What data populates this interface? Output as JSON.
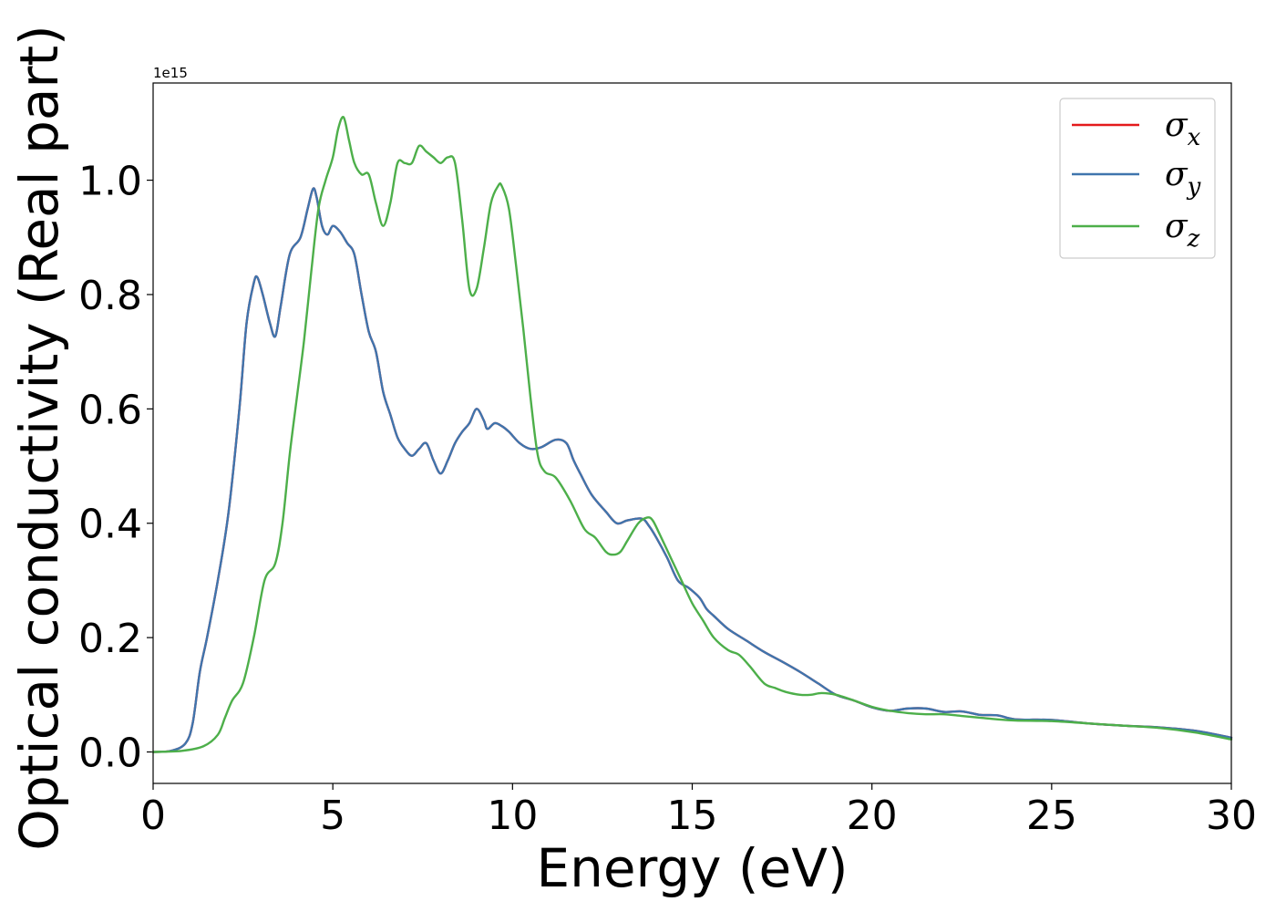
{
  "chart_data": {
    "type": "line",
    "xlabel": "Energy (eV)",
    "ylabel": "Optical conductivity (Real part)",
    "y_offset_text": "1e15",
    "xlim": [
      0,
      30
    ],
    "ylim": [
      -0.055,
      1.17
    ],
    "x_ticks": [
      0,
      5,
      10,
      15,
      20,
      25,
      30
    ],
    "y_ticks": [
      0.0,
      0.2,
      0.4,
      0.6,
      0.8,
      1.0
    ],
    "x_tick_labels": [
      "0",
      "5",
      "10",
      "15",
      "20",
      "25",
      "30"
    ],
    "y_tick_labels": [
      "0.0",
      "0.2",
      "0.4",
      "0.6",
      "0.8",
      "1.0"
    ],
    "legend_position": "top-right",
    "grid": false,
    "series": [
      {
        "name": "σx",
        "sym": "σ",
        "sub": "x",
        "color": "#e41a1c",
        "x": [
          0,
          0.5,
          0.9,
          1.1,
          1.3,
          1.5,
          1.8,
          2.1,
          2.4,
          2.6,
          2.8,
          2.9,
          3.05,
          3.25,
          3.4,
          3.55,
          3.8,
          4.1,
          4.3,
          4.45,
          4.55,
          4.7,
          4.85,
          5.0,
          5.2,
          5.4,
          5.6,
          5.8,
          6.0,
          6.2,
          6.4,
          6.6,
          6.8,
          7.0,
          7.2,
          7.4,
          7.6,
          7.8,
          8.0,
          8.2,
          8.4,
          8.6,
          8.8,
          9.0,
          9.2,
          9.3,
          9.5,
          9.7,
          9.9,
          10.2,
          10.5,
          10.8,
          11.2,
          11.5,
          11.7,
          11.9,
          12.2,
          12.6,
          12.9,
          13.2,
          13.6,
          13.8,
          14.0,
          14.3,
          14.6,
          14.9,
          15.2,
          15.4,
          15.6,
          16.0,
          16.5,
          17.0,
          17.5,
          18.0,
          18.5,
          19.0,
          19.5,
          20.0,
          20.5,
          21.0,
          21.5,
          22.0,
          22.5,
          23.0,
          23.5,
          24.0,
          25.0,
          26.0,
          27.0,
          28.0,
          29.0,
          30.0
        ],
        "y": [
          0.0,
          0.002,
          0.015,
          0.05,
          0.14,
          0.2,
          0.3,
          0.42,
          0.6,
          0.75,
          0.82,
          0.83,
          0.8,
          0.75,
          0.727,
          0.78,
          0.87,
          0.9,
          0.95,
          0.985,
          0.97,
          0.92,
          0.905,
          0.92,
          0.91,
          0.89,
          0.87,
          0.8,
          0.735,
          0.7,
          0.63,
          0.59,
          0.55,
          0.53,
          0.518,
          0.53,
          0.54,
          0.51,
          0.487,
          0.51,
          0.54,
          0.56,
          0.575,
          0.6,
          0.58,
          0.565,
          0.575,
          0.57,
          0.56,
          0.54,
          0.53,
          0.533,
          0.546,
          0.54,
          0.51,
          0.485,
          0.45,
          0.42,
          0.4,
          0.405,
          0.408,
          0.395,
          0.375,
          0.34,
          0.3,
          0.287,
          0.27,
          0.25,
          0.238,
          0.215,
          0.195,
          0.175,
          0.158,
          0.14,
          0.12,
          0.1,
          0.09,
          0.078,
          0.072,
          0.076,
          0.076,
          0.07,
          0.071,
          0.065,
          0.064,
          0.057,
          0.056,
          0.05,
          0.046,
          0.043,
          0.037,
          0.025
        ]
      },
      {
        "name": "σy",
        "sym": "σ",
        "sub": "y",
        "color": "#3f75ad",
        "x": [
          0,
          0.5,
          0.9,
          1.1,
          1.3,
          1.5,
          1.8,
          2.1,
          2.4,
          2.6,
          2.8,
          2.9,
          3.05,
          3.25,
          3.4,
          3.55,
          3.8,
          4.1,
          4.3,
          4.45,
          4.55,
          4.7,
          4.85,
          5.0,
          5.2,
          5.4,
          5.6,
          5.8,
          6.0,
          6.2,
          6.4,
          6.6,
          6.8,
          7.0,
          7.2,
          7.4,
          7.6,
          7.8,
          8.0,
          8.2,
          8.4,
          8.6,
          8.8,
          9.0,
          9.2,
          9.3,
          9.5,
          9.7,
          9.9,
          10.2,
          10.5,
          10.8,
          11.2,
          11.5,
          11.7,
          11.9,
          12.2,
          12.6,
          12.9,
          13.2,
          13.6,
          13.8,
          14.0,
          14.3,
          14.6,
          14.9,
          15.2,
          15.4,
          15.6,
          16.0,
          16.5,
          17.0,
          17.5,
          18.0,
          18.5,
          19.0,
          19.5,
          20.0,
          20.5,
          21.0,
          21.5,
          22.0,
          22.5,
          23.0,
          23.5,
          24.0,
          25.0,
          26.0,
          27.0,
          28.0,
          29.0,
          30.0
        ],
        "y": [
          0.0,
          0.002,
          0.015,
          0.05,
          0.14,
          0.2,
          0.3,
          0.42,
          0.6,
          0.75,
          0.82,
          0.83,
          0.8,
          0.75,
          0.727,
          0.78,
          0.87,
          0.9,
          0.95,
          0.985,
          0.97,
          0.92,
          0.905,
          0.92,
          0.91,
          0.89,
          0.87,
          0.8,
          0.735,
          0.7,
          0.63,
          0.59,
          0.55,
          0.53,
          0.518,
          0.53,
          0.54,
          0.51,
          0.487,
          0.51,
          0.54,
          0.56,
          0.575,
          0.6,
          0.58,
          0.565,
          0.575,
          0.57,
          0.56,
          0.54,
          0.53,
          0.533,
          0.546,
          0.54,
          0.51,
          0.485,
          0.45,
          0.42,
          0.4,
          0.405,
          0.408,
          0.395,
          0.375,
          0.34,
          0.3,
          0.287,
          0.27,
          0.25,
          0.238,
          0.215,
          0.195,
          0.175,
          0.158,
          0.14,
          0.12,
          0.1,
          0.09,
          0.078,
          0.072,
          0.076,
          0.076,
          0.07,
          0.071,
          0.065,
          0.064,
          0.057,
          0.056,
          0.05,
          0.046,
          0.043,
          0.037,
          0.025
        ]
      },
      {
        "name": "σz",
        "sym": "σ",
        "sub": "z",
        "color": "#4daf4a",
        "x": [
          0,
          0.8,
          1.4,
          1.8,
          2.0,
          2.2,
          2.5,
          2.8,
          3.1,
          3.4,
          3.6,
          3.8,
          4.0,
          4.2,
          4.4,
          4.6,
          4.8,
          5.0,
          5.15,
          5.3,
          5.45,
          5.6,
          5.8,
          6.0,
          6.2,
          6.4,
          6.6,
          6.8,
          7.0,
          7.2,
          7.4,
          7.6,
          7.8,
          8.0,
          8.2,
          8.4,
          8.6,
          8.8,
          9.0,
          9.2,
          9.4,
          9.6,
          9.7,
          9.9,
          10.1,
          10.3,
          10.5,
          10.7,
          10.9,
          11.2,
          11.6,
          12.0,
          12.3,
          12.6,
          12.8,
          13.0,
          13.2,
          13.5,
          13.75,
          13.9,
          14.1,
          14.4,
          14.7,
          15.0,
          15.3,
          15.6,
          16.0,
          16.3,
          16.6,
          17.0,
          17.3,
          17.6,
          18.0,
          18.3,
          18.6,
          19.0,
          19.5,
          20.0,
          20.5,
          21.0,
          21.5,
          22.0,
          22.5,
          23.0,
          23.5,
          24.0,
          25.0,
          26.0,
          27.0,
          28.0,
          29.0,
          30.0
        ],
        "y": [
          0.0,
          0.002,
          0.01,
          0.03,
          0.06,
          0.09,
          0.12,
          0.2,
          0.3,
          0.33,
          0.4,
          0.52,
          0.62,
          0.72,
          0.84,
          0.95,
          1.0,
          1.04,
          1.09,
          1.11,
          1.07,
          1.03,
          1.01,
          1.01,
          0.96,
          0.92,
          0.96,
          1.03,
          1.03,
          1.03,
          1.06,
          1.05,
          1.04,
          1.03,
          1.04,
          1.03,
          0.93,
          0.81,
          0.81,
          0.88,
          0.96,
          0.99,
          0.99,
          0.95,
          0.85,
          0.74,
          0.62,
          0.52,
          0.49,
          0.48,
          0.44,
          0.39,
          0.375,
          0.35,
          0.345,
          0.35,
          0.37,
          0.4,
          0.41,
          0.405,
          0.38,
          0.34,
          0.3,
          0.26,
          0.23,
          0.2,
          0.178,
          0.17,
          0.15,
          0.12,
          0.112,
          0.105,
          0.1,
          0.1,
          0.103,
          0.1,
          0.09,
          0.079,
          0.072,
          0.068,
          0.066,
          0.066,
          0.063,
          0.06,
          0.057,
          0.055,
          0.054,
          0.05,
          0.046,
          0.042,
          0.034,
          0.022
        ]
      }
    ]
  }
}
